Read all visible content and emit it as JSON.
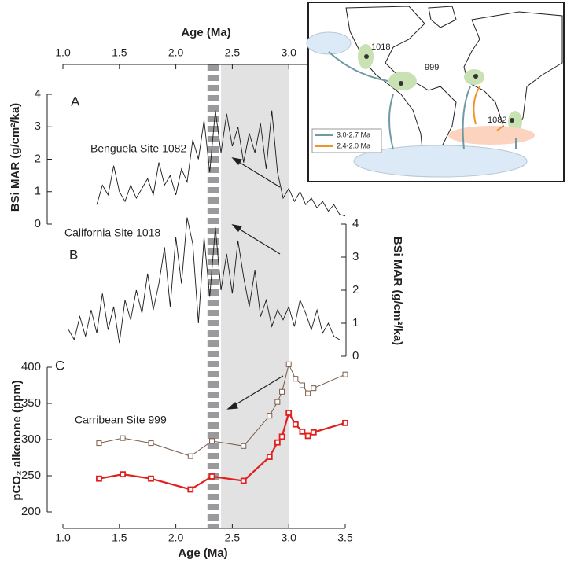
{
  "top_axis": {
    "label": "Age (Ma)",
    "xlim": [
      1.0,
      3.5
    ],
    "xticks": [
      {
        "value": 1.0,
        "label": "1.0"
      },
      1.5,
      {
        "value": 2.0,
        "label": "2.0"
      },
      2.5,
      {
        "value": 3.0,
        "label": "3.0"
      }
    ]
  },
  "bottom_axis": {
    "label": "Age (Ma)",
    "xlim": [
      1.0,
      3.5
    ],
    "xticks": [
      {
        "value": 1.0,
        "label": "1.0"
      },
      1.5,
      {
        "value": 2.0,
        "label": "2.0"
      },
      2.5,
      {
        "value": 3.0,
        "label": "3.0"
      },
      3.5
    ]
  },
  "shaded_span": [
    2.4,
    3.0
  ],
  "dashed_span": [
    2.28,
    2.38
  ],
  "chart_data": [
    {
      "type": "line",
      "panel_label": "A",
      "annotation": "Benguela Site 1082",
      "ylabel": "BSi MAR (g/cm²/ka)",
      "ylim": [
        0,
        4
      ],
      "yticks": [
        0,
        1,
        2,
        3,
        4
      ],
      "x": [
        1.3,
        1.35,
        1.4,
        1.45,
        1.5,
        1.55,
        1.6,
        1.65,
        1.7,
        1.75,
        1.8,
        1.85,
        1.9,
        1.95,
        2.0,
        2.05,
        2.1,
        2.15,
        2.2,
        2.25,
        2.3,
        2.35,
        2.4,
        2.45,
        2.5,
        2.55,
        2.6,
        2.65,
        2.7,
        2.75,
        2.8,
        2.85,
        2.9,
        2.95,
        3.0,
        3.05,
        3.1,
        3.15,
        3.2,
        3.25,
        3.3,
        3.35,
        3.4,
        3.45,
        3.5
      ],
      "series": [
        {
          "color": "#1a1a1a",
          "values": [
            0.6,
            1.2,
            0.9,
            1.8,
            1.0,
            0.7,
            1.2,
            0.8,
            1.1,
            1.4,
            0.9,
            1.9,
            1.2,
            1.5,
            0.9,
            1.7,
            1.3,
            2.6,
            2.0,
            3.2,
            1.6,
            3.5,
            2.2,
            3.4,
            2.4,
            3.0,
            1.9,
            2.8,
            2.2,
            3.1,
            1.7,
            3.5,
            1.6,
            0.8,
            1.1,
            0.7,
            1.0,
            0.6,
            0.8,
            0.5,
            0.7,
            0.4,
            0.6,
            0.3,
            0.25
          ]
        }
      ]
    },
    {
      "type": "line",
      "panel_label": "B",
      "annotation": "California Site 1018",
      "ylabel": "BSi MAR (g/cm²/ka)",
      "ylim": [
        0,
        4
      ],
      "yticks": [
        0,
        1,
        2,
        3,
        4
      ],
      "x": [
        1.05,
        1.1,
        1.15,
        1.2,
        1.25,
        1.3,
        1.35,
        1.4,
        1.45,
        1.5,
        1.55,
        1.6,
        1.65,
        1.7,
        1.75,
        1.8,
        1.85,
        1.9,
        1.95,
        2.0,
        2.05,
        2.1,
        2.15,
        2.2,
        2.25,
        2.3,
        2.35,
        2.4,
        2.45,
        2.5,
        2.55,
        2.6,
        2.65,
        2.7,
        2.75,
        2.8,
        2.85,
        2.9,
        2.95,
        3.0,
        3.05,
        3.1,
        3.15,
        3.2,
        3.25,
        3.3,
        3.35,
        3.4,
        3.45
      ],
      "series": [
        {
          "color": "#1a1a1a",
          "values": [
            0.8,
            0.5,
            1.2,
            0.6,
            1.4,
            0.7,
            1.9,
            0.8,
            1.5,
            0.4,
            1.7,
            1.1,
            2.0,
            1.3,
            2.5,
            1.4,
            2.2,
            3.3,
            1.5,
            3.6,
            2.2,
            4.2,
            3.4,
            1.0,
            3.6,
            1.8,
            3.9,
            2.0,
            3.1,
            1.9,
            3.5,
            2.4,
            1.5,
            2.6,
            1.2,
            1.7,
            0.9,
            1.4,
            1.1,
            1.5,
            0.9,
            1.7,
            1.3,
            0.8,
            1.4,
            0.7,
            1.0,
            0.6,
            0.5
          ]
        }
      ]
    },
    {
      "type": "line-marker",
      "panel_label": "C",
      "annotation": "Carribean Site 999",
      "ylabel": "pCO₂ alkenone (ppm)",
      "ylim": [
        200,
        400
      ],
      "yticks": [
        200,
        250,
        300,
        350,
        400
      ],
      "x": [
        1.32,
        1.53,
        1.78,
        2.13,
        2.32,
        2.6,
        2.83,
        2.9,
        2.94,
        3.0,
        3.06,
        3.12,
        3.17,
        3.22,
        3.5
      ],
      "series": [
        {
          "color": "#7a5a4a",
          "values": [
            295,
            302,
            295,
            277,
            298,
            291,
            333,
            352,
            366,
            404,
            384,
            375,
            364,
            371,
            390
          ]
        },
        {
          "color": "#e0201c",
          "values": [
            246,
            252,
            246,
            231,
            249,
            243,
            276,
            296,
            304,
            337,
            321,
            311,
            305,
            310,
            323
          ]
        }
      ]
    }
  ],
  "map": {
    "labels": [
      "1018",
      "999",
      "1082"
    ],
    "legend": [
      "3.0-2.7 Ma",
      "2.4-2.0 Ma"
    ]
  }
}
